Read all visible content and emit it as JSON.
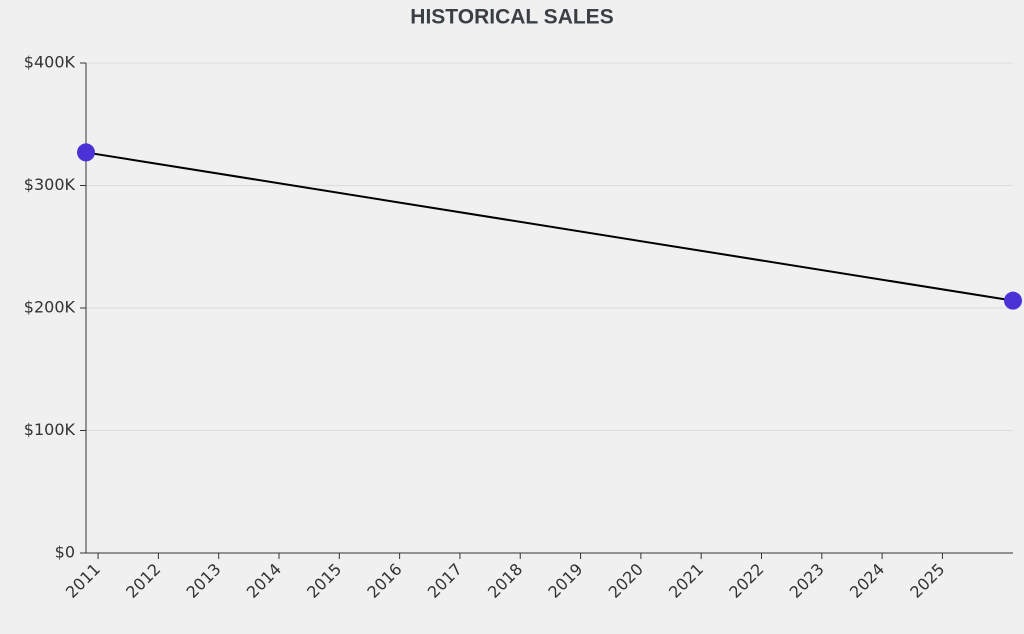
{
  "chart_data": {
    "type": "line",
    "title": "HISTORICAL SALES",
    "x": [
      2010.8,
      2026.17
    ],
    "series": [
      {
        "color": "#4a32d6",
        "line_color": "#000000",
        "values": [
          327000,
          206000
        ]
      }
    ],
    "xlim": [
      2010.8,
      2026.17
    ],
    "xticks": [
      2011,
      2012,
      2013,
      2014,
      2015,
      2016,
      2017,
      2018,
      2019,
      2020,
      2021,
      2022,
      2023,
      2024,
      2025
    ],
    "ylim": [
      0,
      400000
    ],
    "yticks": [
      {
        "value": 0,
        "label": "$0"
      },
      {
        "value": 100000,
        "label": "$100K"
      },
      {
        "value": 200000,
        "label": "$200K"
      },
      {
        "value": 300000,
        "label": "$300K"
      },
      {
        "value": 400000,
        "label": "$400K"
      }
    ],
    "grid": true
  }
}
